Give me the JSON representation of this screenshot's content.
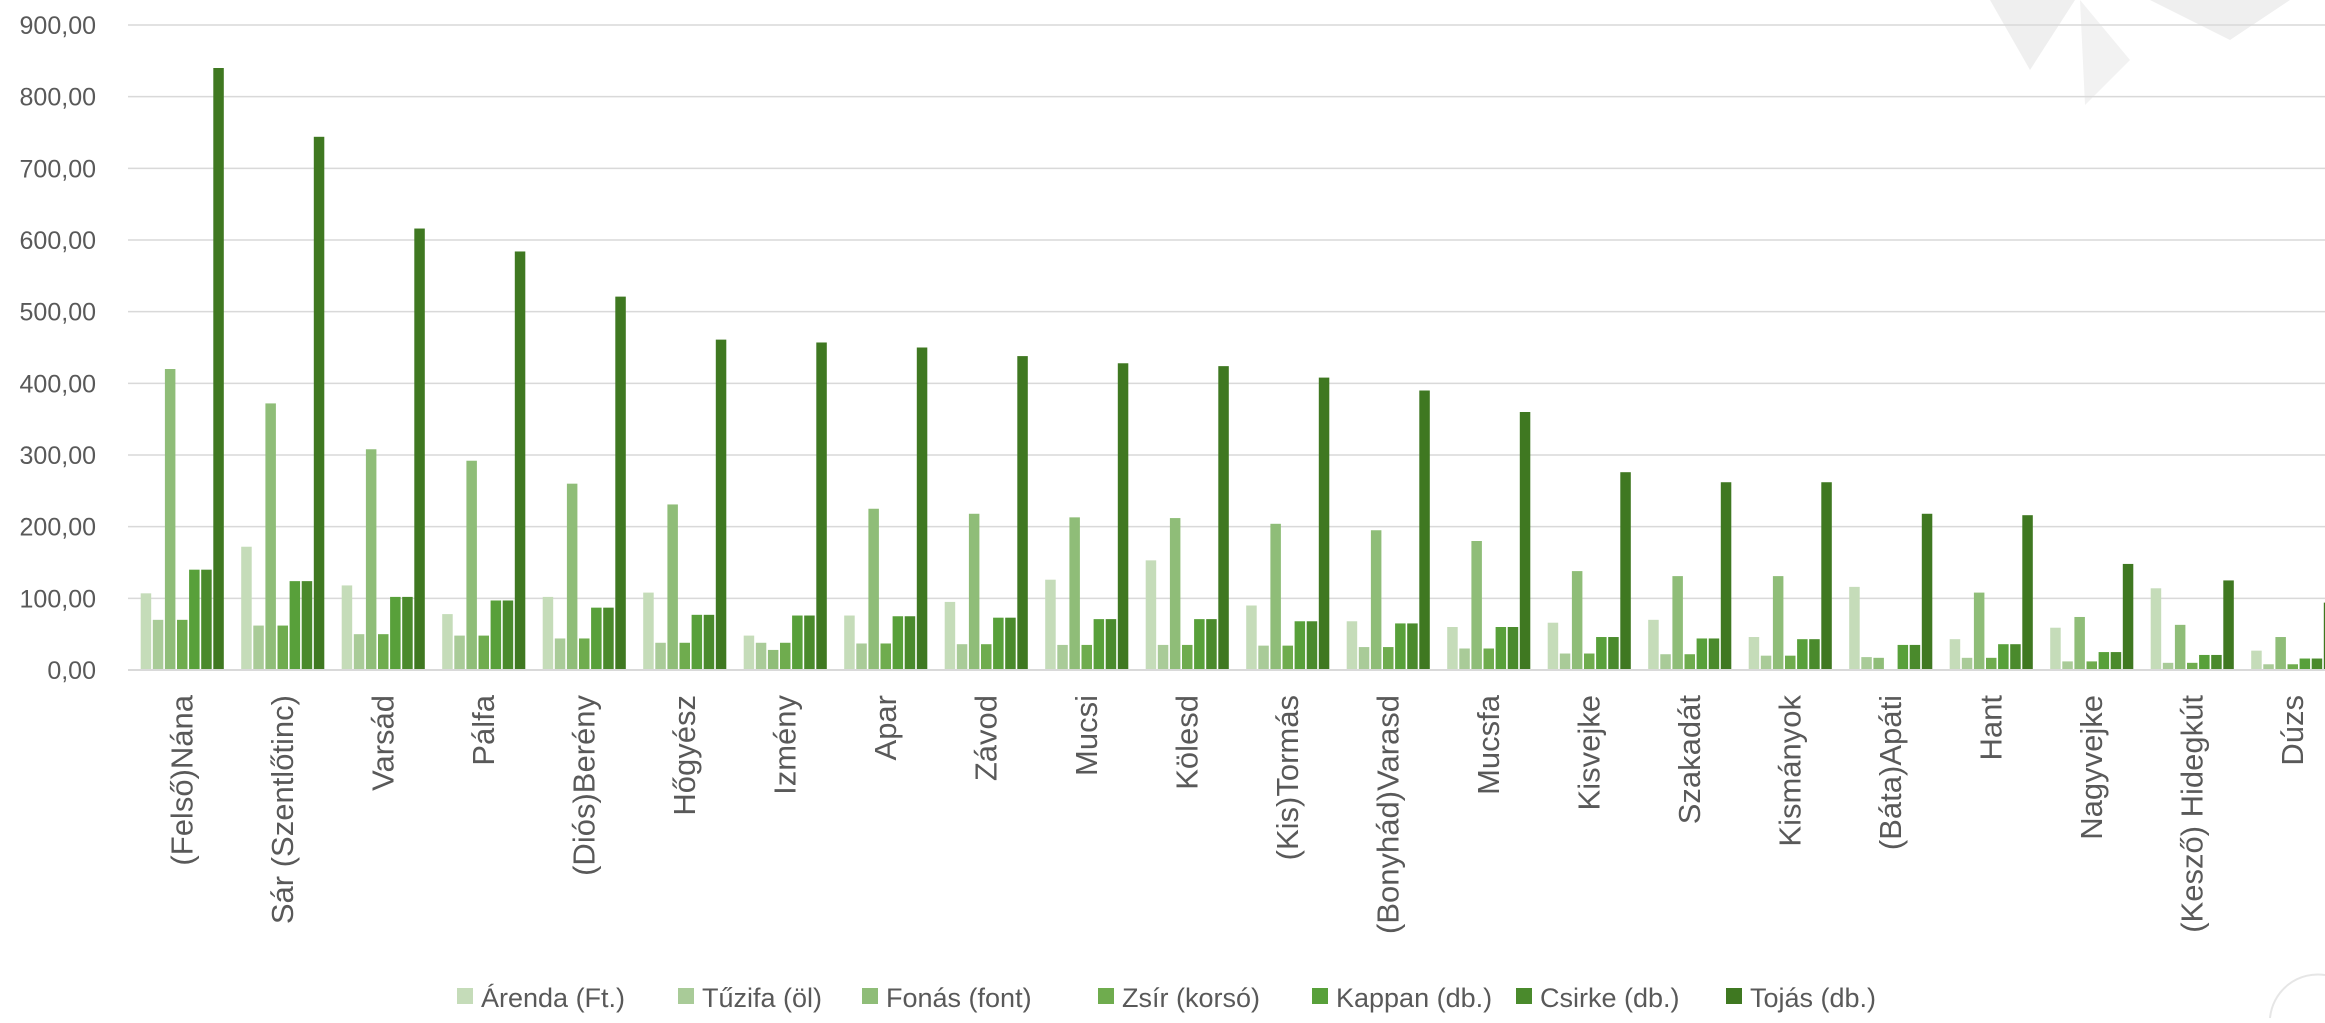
{
  "chart_data": {
    "type": "bar",
    "title": "",
    "xlabel": "",
    "ylabel": "",
    "ylim": [
      0,
      900
    ],
    "y_ticks": [
      "0,00",
      "100,00",
      "200,00",
      "300,00",
      "400,00",
      "500,00",
      "600,00",
      "700,00",
      "800,00",
      "900,00"
    ],
    "grid": true,
    "legend_position": "bottom",
    "categories": [
      "(Felső)Nána",
      "Sár (Szentlőtinc)",
      "Varsád",
      "Pálfa",
      "(Diós)Berény",
      "Hőgyész",
      "Izmény",
      "Apar",
      "Závod",
      "Mucsi",
      "Kölesd",
      "(Kis)Tormás",
      "(Bonyhád)Varasd",
      "Mucsfa",
      "Kisvejke",
      "Szakadát",
      "Kismányok",
      "(Báta)Apáti",
      "Hant",
      "Nagyvejke",
      "(Kesző) Hidegkút",
      "Dúzs"
    ],
    "series": [
      {
        "name": "Árenda (Ft.)",
        "color": "#c5dcb9",
        "values": [
          107,
          172,
          118,
          78,
          102,
          108,
          48,
          76,
          95,
          126,
          153,
          90,
          68,
          60,
          66,
          70,
          46,
          116,
          43,
          59,
          114,
          27
        ]
      },
      {
        "name": "Tűzifa (öl)",
        "color": "#a9cb98",
        "values": [
          70,
          62,
          50,
          48,
          44,
          38,
          38,
          37,
          36,
          35,
          35,
          34,
          32,
          30,
          23,
          22,
          20,
          18,
          17,
          12,
          10,
          8
        ]
      },
      {
        "name": "Fonás (font)",
        "color": "#8fbd78",
        "values": [
          420,
          372,
          308,
          292,
          260,
          231,
          28,
          225,
          218,
          213,
          212,
          204,
          195,
          180,
          138,
          131,
          131,
          17,
          108,
          74,
          63,
          46
        ]
      },
      {
        "name": "Zsír (korsó)",
        "color": "#6fac4e",
        "values": [
          70,
          62,
          50,
          48,
          44,
          38,
          38,
          37,
          36,
          35,
          35,
          34,
          32,
          30,
          23,
          22,
          20,
          0,
          17,
          12,
          10,
          8
        ]
      },
      {
        "name": "Kappan (db.)",
        "color": "#58a03a",
        "values": [
          140,
          124,
          102,
          97,
          87,
          77,
          76,
          75,
          73,
          71,
          71,
          68,
          65,
          60,
          46,
          44,
          43,
          35,
          36,
          25,
          21,
          16
        ]
      },
      {
        "name": "Csirke (db.)",
        "color": "#4a8a2c",
        "values": [
          140,
          124,
          102,
          97,
          87,
          77,
          76,
          75,
          73,
          71,
          71,
          68,
          65,
          60,
          46,
          44,
          43,
          35,
          36,
          25,
          21,
          16
        ]
      },
      {
        "name": "Tojás (db.)",
        "color": "#3f7821",
        "values": [
          840,
          744,
          616,
          584,
          521,
          461,
          457,
          450,
          438,
          428,
          424,
          408,
          390,
          360,
          276,
          262,
          262,
          218,
          216,
          148,
          125,
          94
        ]
      }
    ]
  }
}
